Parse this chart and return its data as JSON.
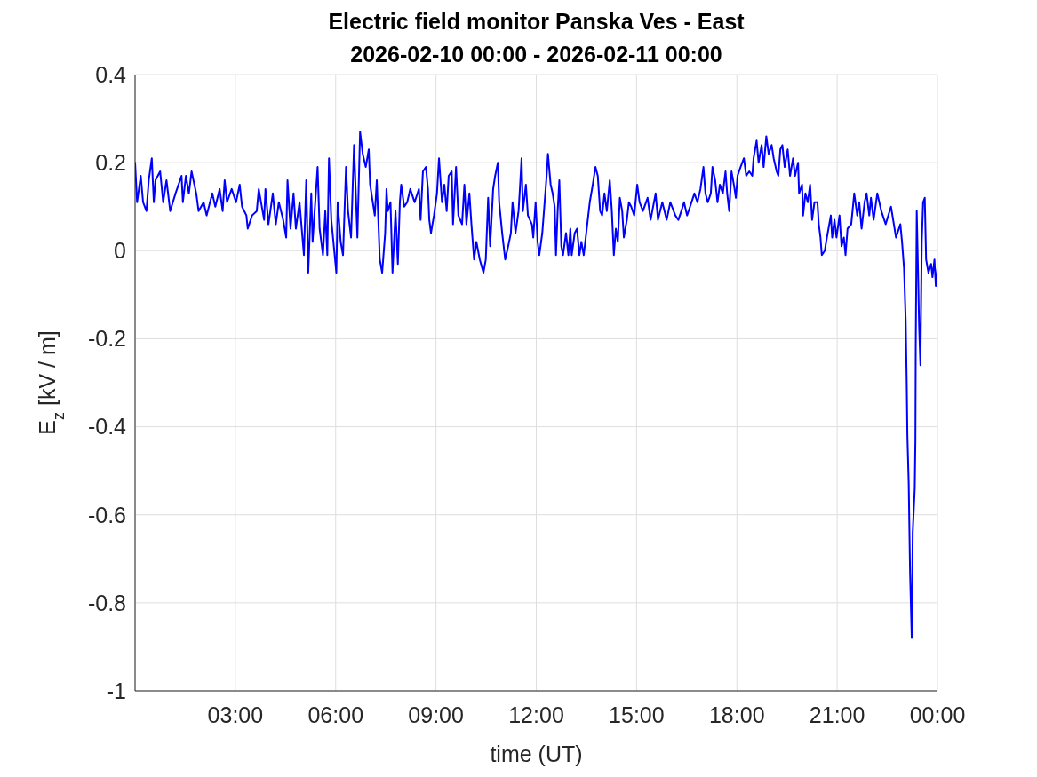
{
  "chart_data": {
    "type": "line",
    "title": "Electric field monitor Panska Ves - East",
    "subtitle": "2026-02-10 00:00 - 2026-02-11 00:00",
    "xlabel": "time (UT)",
    "ylabel": "E$_{z}$ [kV / m]",
    "x": [
      0,
      0.06,
      0.17,
      0.24,
      0.34,
      0.41,
      0.5,
      0.56,
      0.61,
      0.75,
      0.84,
      0.94,
      1.05,
      1.21,
      1.39,
      1.43,
      1.52,
      1.61,
      1.69,
      1.83,
      1.9,
      2.05,
      2.14,
      2.31,
      2.4,
      2.53,
      2.62,
      2.68,
      2.75,
      2.89,
      3.02,
      3.13,
      3.2,
      3.33,
      3.37,
      3.5,
      3.64,
      3.7,
      3.86,
      3.9,
      3.99,
      4.12,
      4.21,
      4.3,
      4.43,
      4.52,
      4.56,
      4.65,
      4.74,
      4.81,
      4.92,
      5.05,
      5.12,
      5.18,
      5.27,
      5.31,
      5.46,
      5.52,
      5.62,
      5.69,
      5.75,
      5.8,
      5.87,
      6.02,
      6.06,
      6.15,
      6.22,
      6.31,
      6.37,
      6.46,
      6.55,
      6.65,
      6.73,
      6.81,
      6.9,
      6.99,
      7.03,
      7.17,
      7.23,
      7.32,
      7.39,
      7.48,
      7.52,
      7.56,
      7.64,
      7.7,
      7.79,
      7.86,
      7.92,
      7.96,
      8.05,
      8.14,
      8.23,
      8.36,
      8.49,
      8.54,
      8.61,
      8.7,
      8.76,
      8.8,
      8.85,
      8.94,
      9.03,
      9.09,
      9.18,
      9.25,
      9.32,
      9.38,
      9.47,
      9.51,
      9.6,
      9.67,
      9.78,
      9.85,
      9.91,
      10,
      10.06,
      10.14,
      10.21,
      10.31,
      10.42,
      10.49,
      10.56,
      10.62,
      10.71,
      10.77,
      10.85,
      10.89,
      10.98,
      11.07,
      11.16,
      11.24,
      11.29,
      11.38,
      11.47,
      11.51,
      11.56,
      11.6,
      11.69,
      11.75,
      11.87,
      11.91,
      11.98,
      12.04,
      12.09,
      12.18,
      12.25,
      12.31,
      12.35,
      12.43,
      12.49,
      12.55,
      12.59,
      12.64,
      12.69,
      12.75,
      12.8,
      12.89,
      12.96,
      13.02,
      13.06,
      13.15,
      13.22,
      13.29,
      13.35,
      13.42,
      13.51,
      13.6,
      13.69,
      13.77,
      13.84,
      13.91,
      13.97,
      14.04,
      14.11,
      14.2,
      14.26,
      14.32,
      14.38,
      14.44,
      14.5,
      14.57,
      14.62,
      14.71,
      14.77,
      14.84,
      14.93,
      15.02,
      15.09,
      15.19,
      15.33,
      15.42,
      15.57,
      15.64,
      15.77,
      15.9,
      16.01,
      16.16,
      16.25,
      16.34,
      16.42,
      16.51,
      16.6,
      16.73,
      16.82,
      16.91,
      17,
      17.06,
      17.13,
      17.22,
      17.27,
      17.35,
      17.42,
      17.49,
      17.58,
      17.66,
      17.71,
      17.77,
      17.84,
      17.91,
      17.97,
      18.02,
      18.11,
      18.21,
      18.28,
      18.37,
      18.46,
      18.5,
      18.59,
      18.65,
      18.74,
      18.8,
      18.88,
      18.95,
      19.04,
      19.1,
      19.19,
      19.24,
      19.3,
      19.36,
      19.43,
      19.52,
      19.59,
      19.68,
      19.74,
      19.83,
      19.86,
      19.95,
      19.98,
      20.05,
      20.12,
      20.19,
      20.25,
      20.32,
      20.41,
      20.45,
      20.5,
      20.54,
      20.63,
      20.67,
      20.74,
      20.81,
      20.85,
      20.92,
      20.98,
      21.07,
      21.13,
      21.2,
      21.25,
      21.31,
      21.42,
      21.51,
      21.6,
      21.66,
      21.73,
      21.82,
      21.88,
      21.96,
      22.01,
      22.09,
      22.2,
      22.32,
      22.45,
      22.61,
      22.76,
      22.89,
      22.94,
      23,
      23.05,
      23.08,
      23.1,
      23.14,
      23.18,
      23.23,
      23.26,
      23.32,
      23.34,
      23.35,
      23.38,
      23.42,
      23.45,
      23.49,
      23.53,
      23.57,
      23.62,
      23.66,
      23.73,
      23.81,
      23.85,
      23.91,
      23.95,
      24
    ],
    "series": [
      {
        "color": "#0000ff",
        "values": [
          0.2,
          0.11,
          0.17,
          0.11,
          0.09,
          0.16,
          0.21,
          0.11,
          0.16,
          0.18,
          0.11,
          0.16,
          0.09,
          0.13,
          0.17,
          0.11,
          0.17,
          0.13,
          0.18,
          0.13,
          0.09,
          0.11,
          0.08,
          0.13,
          0.1,
          0.14,
          0.09,
          0.16,
          0.11,
          0.14,
          0.11,
          0.15,
          0.1,
          0.08,
          0.05,
          0.08,
          0.09,
          0.14,
          0.07,
          0.14,
          0.06,
          0.13,
          0.06,
          0.11,
          0.07,
          0.03,
          0.16,
          0.05,
          0.13,
          0.05,
          0.11,
          -0.01,
          0.16,
          -0.05,
          0.13,
          0.02,
          0.19,
          0.05,
          -0.01,
          0.09,
          -0.01,
          0.21,
          0.07,
          -0.05,
          0.11,
          0.02,
          -0.01,
          0.19,
          0.09,
          0.03,
          0.24,
          0.03,
          0.27,
          0.22,
          0.19,
          0.23,
          0.15,
          0.08,
          0.16,
          -0.02,
          -0.05,
          0.04,
          0.14,
          0.09,
          0.11,
          -0.05,
          0.09,
          -0.03,
          0.11,
          0.15,
          0.1,
          0.11,
          0.14,
          0.11,
          0.14,
          0.07,
          0.18,
          0.19,
          0.14,
          0.07,
          0.04,
          0.08,
          0.13,
          0.21,
          0.11,
          0.15,
          0.09,
          0.17,
          0.18,
          0.06,
          0.19,
          0.08,
          0.06,
          0.15,
          0.06,
          0.13,
          0.06,
          -0.02,
          0.02,
          -0.02,
          -0.05,
          -0.02,
          0.12,
          0.01,
          0.14,
          0.17,
          0.2,
          0.11,
          0.04,
          -0.02,
          0.01,
          0.04,
          0.11,
          0.04,
          0.09,
          0.14,
          0.21,
          0.09,
          0.15,
          0.08,
          0.06,
          0.03,
          0.11,
          0.02,
          -0.01,
          0.04,
          0.11,
          0.17,
          0.22,
          0.15,
          0.13,
          0.1,
          -0.01,
          0.09,
          0.16,
          0.01,
          -0.01,
          0.04,
          -0.01,
          0.05,
          -0.01,
          0.04,
          0.05,
          -0.01,
          0.02,
          -0.01,
          0.05,
          0.11,
          0.15,
          0.19,
          0.17,
          0.09,
          0.08,
          0.13,
          0.09,
          0.16,
          0.09,
          -0.01,
          0.05,
          0.02,
          0.12,
          0.09,
          0.03,
          0.07,
          0.11,
          0.1,
          0.08,
          0.15,
          0.11,
          0.09,
          0.12,
          0.07,
          0.13,
          0.07,
          0.11,
          0.07,
          0.11,
          0.08,
          0.07,
          0.09,
          0.11,
          0.08,
          0.1,
          0.13,
          0.11,
          0.14,
          0.19,
          0.13,
          0.11,
          0.13,
          0.19,
          0.16,
          0.11,
          0.15,
          0.13,
          0.18,
          0.13,
          0.09,
          0.18,
          0.15,
          0.12,
          0.17,
          0.19,
          0.21,
          0.17,
          0.18,
          0.17,
          0.21,
          0.25,
          0.2,
          0.24,
          0.19,
          0.26,
          0.22,
          0.24,
          0.21,
          0.18,
          0.17,
          0.23,
          0.24,
          0.19,
          0.23,
          0.17,
          0.21,
          0.17,
          0.2,
          0.13,
          0.15,
          0.08,
          0.13,
          0.11,
          0.15,
          0.07,
          0.11,
          0.11,
          0.06,
          0.03,
          -0.01,
          0,
          0.02,
          0.05,
          0.08,
          0.03,
          0.07,
          0.03,
          0.08,
          0.01,
          0.03,
          -0.01,
          0.05,
          0.06,
          0.13,
          0.08,
          0.11,
          0.05,
          0.11,
          0.13,
          0.08,
          0.12,
          0.07,
          0.13,
          0.09,
          0.06,
          0.1,
          0.03,
          0.06,
          0.02,
          -0.04,
          -0.16,
          -0.3,
          -0.42,
          -0.53,
          -0.73,
          -0.88,
          -0.64,
          -0.54,
          -0.43,
          -0.22,
          0.09,
          -0.05,
          -0.17,
          -0.26,
          0.02,
          0.11,
          0.12,
          -0.02,
          -0.05,
          -0.03,
          -0.06,
          -0.02,
          -0.08,
          -0.04
        ]
      }
    ],
    "xlim": [
      0,
      24
    ],
    "xticks": [
      {
        "value": 3,
        "label": "03:00"
      },
      {
        "value": 6,
        "label": "06:00"
      },
      {
        "value": 9,
        "label": "09:00"
      },
      {
        "value": 12,
        "label": "12:00"
      },
      {
        "value": 15,
        "label": "15:00"
      },
      {
        "value": 18,
        "label": "18:00"
      },
      {
        "value": 21,
        "label": "21:00"
      },
      {
        "value": 24,
        "label": "00:00"
      }
    ],
    "ylim": [
      -1,
      0.4
    ],
    "yticks": [
      -1,
      -0.8,
      -0.6,
      -0.4,
      -0.2,
      0,
      0.2,
      0.4
    ],
    "grid": true,
    "line_style": "solid"
  }
}
